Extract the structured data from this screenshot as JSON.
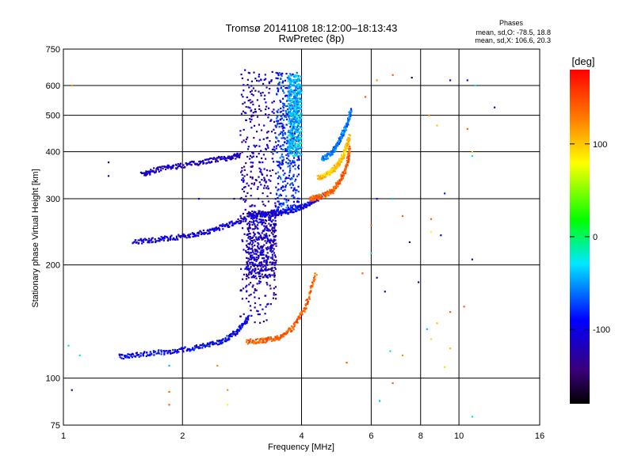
{
  "chart_data": {
    "type": "scatter",
    "title": "Tromsø 20141108 18:12:00–18:13:43",
    "subtitle": "RwPretec (8p)",
    "xlabel": "Frequency [MHz]",
    "ylabel": "Stationary phase Virtual Height [km]",
    "x_scale": "log",
    "y_scale": "log",
    "xlim": [
      1,
      16
    ],
    "ylim": [
      75,
      750
    ],
    "x_ticks": [
      1,
      2,
      4,
      6,
      8,
      10,
      16
    ],
    "y_ticks": [
      75,
      100,
      200,
      300,
      400,
      500,
      600,
      750
    ],
    "grid": true,
    "stats": {
      "heading": "Phases",
      "line_o": "mean, sd,O: -78.5, 18.8",
      "line_x": "mean, sd,X: 106.6, 20.3"
    },
    "colorbar": {
      "label": "[deg]",
      "range": [
        -180,
        180
      ],
      "ticks": [
        100,
        0,
        -100
      ],
      "tick_labels": [
        "100",
        "0",
        "-100"
      ],
      "colormap": "rainbow"
    },
    "traces": [
      {
        "f": [
          1.58,
          1.75,
          2.0,
          2.3,
          2.6,
          2.8
        ],
        "h": [
          348,
          360,
          368,
          378,
          385,
          392
        ],
        "phase": -115
      },
      {
        "f": [
          1.5,
          1.75,
          2.0,
          2.3,
          2.6,
          2.9
        ],
        "h": [
          230,
          234,
          238,
          245,
          255,
          266
        ],
        "phase": -105
      },
      {
        "f": [
          1.38,
          1.6,
          1.9,
          2.2,
          2.5,
          2.75,
          2.95
        ],
        "h": [
          114,
          116,
          118,
          121,
          125,
          133,
          145
        ],
        "phase": -95
      },
      {
        "f": [
          2.9,
          3.2,
          3.5,
          3.8,
          4.1,
          4.35
        ],
        "h": [
          125,
          126,
          128,
          136,
          155,
          190
        ],
        "phase": 140
      },
      {
        "f": [
          2.95,
          3.3,
          3.6,
          3.9,
          4.2,
          4.5
        ],
        "h": [
          272,
          273,
          276,
          282,
          292,
          305
        ],
        "phase": -100
      },
      {
        "f": [
          4.2,
          4.5,
          4.8,
          5.0,
          5.2,
          5.3
        ],
        "h": [
          300,
          305,
          315,
          335,
          365,
          410
        ],
        "phase": 140
      },
      {
        "f": [
          4.4,
          4.7,
          4.95,
          5.15,
          5.3
        ],
        "h": [
          340,
          350,
          370,
          400,
          440
        ],
        "phase": 100
      },
      {
        "f": [
          4.5,
          4.8,
          5.0,
          5.2,
          5.35
        ],
        "h": [
          380,
          400,
          430,
          470,
          520
        ],
        "phase": -60
      }
    ],
    "columns": [
      {
        "f": [
          2.8,
          3.45
        ],
        "h": [
          140,
          660
        ],
        "phase": -120
      },
      {
        "f": [
          3.45,
          3.95
        ],
        "h": [
          280,
          650
        ],
        "phase": -80
      },
      {
        "f": [
          3.7,
          4.0
        ],
        "h": [
          390,
          640
        ],
        "phase": -40
      },
      {
        "f": [
          2.9,
          3.45
        ],
        "h": [
          185,
          280
        ],
        "phase": -115
      }
    ],
    "scatter_noise": [
      {
        "f": 1.05,
        "h": 93,
        "phase": -120
      },
      {
        "f": 1.05,
        "h": 600,
        "phase": 120
      },
      {
        "f": 1.3,
        "h": 375,
        "phase": -140
      },
      {
        "f": 1.3,
        "h": 345,
        "phase": -120
      },
      {
        "f": 1.03,
        "h": 122,
        "phase": -20
      },
      {
        "f": 1.1,
        "h": 115,
        "phase": -20
      },
      {
        "f": 1.85,
        "h": 92,
        "phase": 140
      },
      {
        "f": 1.85,
        "h": 85,
        "phase": 140
      },
      {
        "f": 2.45,
        "h": 108,
        "phase": 120
      },
      {
        "f": 2.6,
        "h": 93,
        "phase": 120
      },
      {
        "f": 2.6,
        "h": 85,
        "phase": 80
      },
      {
        "f": 1.85,
        "h": 108,
        "phase": -40
      },
      {
        "f": 6.0,
        "h": 255,
        "phase": 140
      },
      {
        "f": 6.2,
        "h": 300,
        "phase": -100
      },
      {
        "f": 6.2,
        "h": 185,
        "phase": -120
      },
      {
        "f": 6.8,
        "h": 300,
        "phase": -40
      },
      {
        "f": 7.2,
        "h": 270,
        "phase": 140
      },
      {
        "f": 7.5,
        "h": 230,
        "phase": -140
      },
      {
        "f": 8.5,
        "h": 265,
        "phase": 140
      },
      {
        "f": 8.5,
        "h": 245,
        "phase": 80
      },
      {
        "f": 9.0,
        "h": 240,
        "phase": -100
      },
      {
        "f": 9.2,
        "h": 310,
        "phase": -80
      },
      {
        "f": 8.4,
        "h": 500,
        "phase": 120
      },
      {
        "f": 8.8,
        "h": 470,
        "phase": 100
      },
      {
        "f": 10.8,
        "h": 400,
        "phase": 100
      },
      {
        "f": 10.8,
        "h": 390,
        "phase": -20
      },
      {
        "f": 11.0,
        "h": 600,
        "phase": -30
      },
      {
        "f": 12.3,
        "h": 525,
        "phase": -140
      },
      {
        "f": 10.5,
        "h": 460,
        "phase": 140
      },
      {
        "f": 10.8,
        "h": 207,
        "phase": -140
      },
      {
        "f": 9.5,
        "h": 150,
        "phase": 140
      },
      {
        "f": 9.5,
        "h": 120,
        "phase": 100
      },
      {
        "f": 9.2,
        "h": 107,
        "phase": 90
      },
      {
        "f": 10.8,
        "h": 79,
        "phase": -20
      },
      {
        "f": 6.8,
        "h": 97,
        "phase": 140
      },
      {
        "f": 6.3,
        "h": 87,
        "phase": -40
      },
      {
        "f": 6.7,
        "h": 118,
        "phase": -20
      },
      {
        "f": 7.2,
        "h": 115,
        "phase": 120
      },
      {
        "f": 8.5,
        "h": 127,
        "phase": 90
      },
      {
        "f": 8.3,
        "h": 135,
        "phase": -40
      },
      {
        "f": 10.3,
        "h": 155,
        "phase": 140
      },
      {
        "f": 6.0,
        "h": 215,
        "phase": -20
      },
      {
        "f": 5.8,
        "h": 560,
        "phase": 140
      },
      {
        "f": 6.2,
        "h": 620,
        "phase": 120
      },
      {
        "f": 6.8,
        "h": 640,
        "phase": 140
      },
      {
        "f": 7.6,
        "h": 630,
        "phase": -160
      },
      {
        "f": 9.5,
        "h": 620,
        "phase": -100
      },
      {
        "f": 10.5,
        "h": 620,
        "phase": -120
      },
      {
        "f": 5.2,
        "h": 110,
        "phase": 140
      },
      {
        "f": 3.0,
        "h": 500,
        "phase": -130
      },
      {
        "f": 2.7,
        "h": 300,
        "phase": -140
      },
      {
        "f": 2.2,
        "h": 300,
        "phase": -100
      },
      {
        "f": 5.7,
        "h": 190,
        "phase": 140
      },
      {
        "f": 6.5,
        "h": 170,
        "phase": -120
      },
      {
        "f": 7.9,
        "h": 180,
        "phase": -140
      },
      {
        "f": 8.8,
        "h": 140,
        "phase": 100
      }
    ]
  }
}
